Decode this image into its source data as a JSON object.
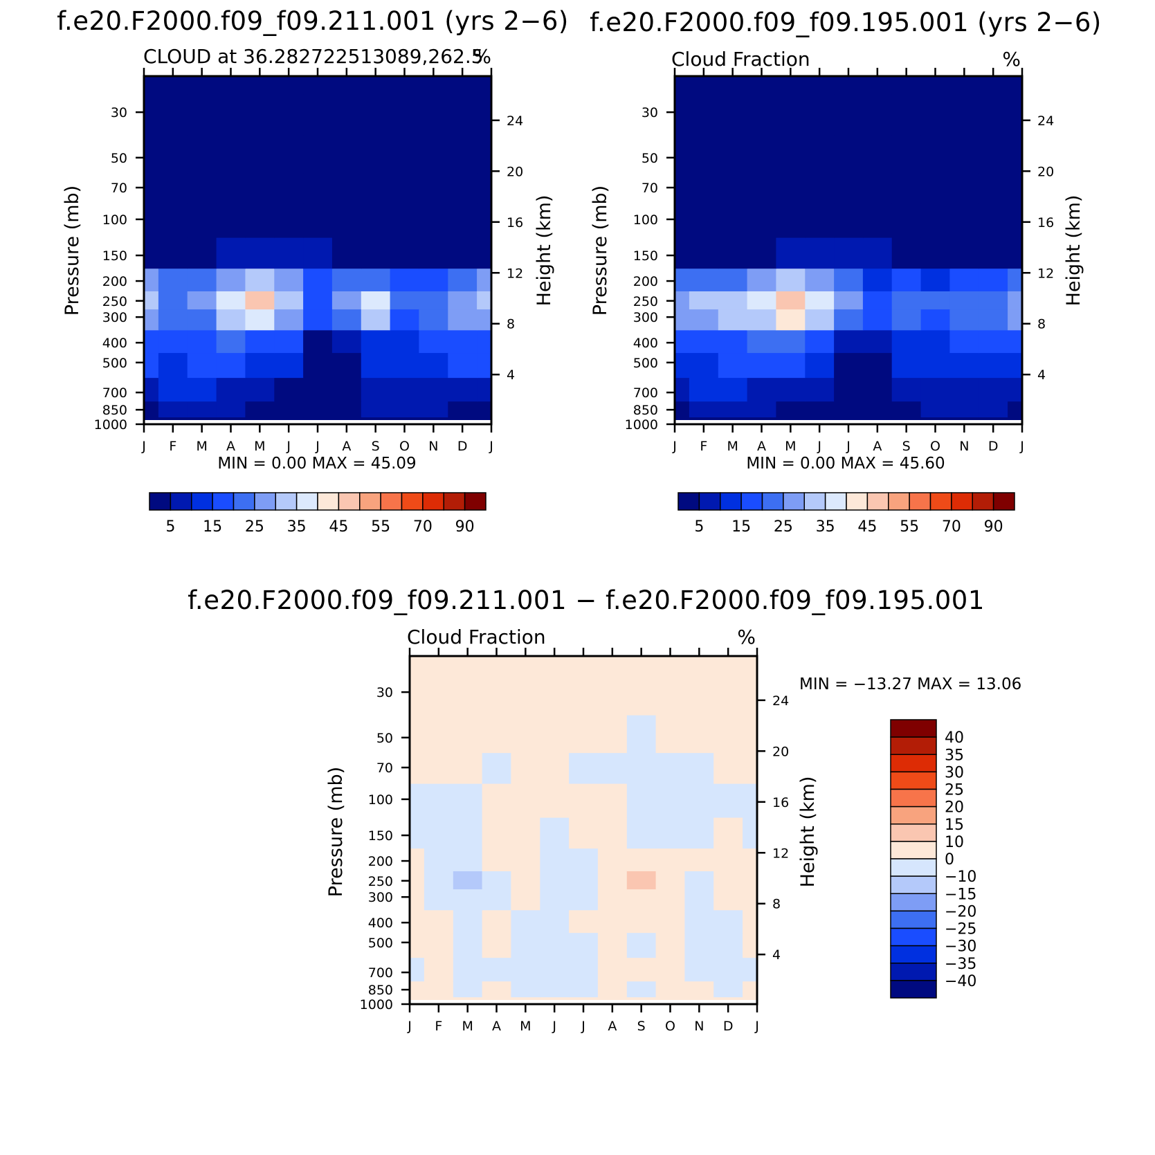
{
  "page": {
    "background": "#ffffff"
  },
  "colors": {
    "seq": [
      "#000a80",
      "#0019b0",
      "#0030e0",
      "#1a4dff",
      "#3d6ff2",
      "#7e9df5",
      "#b4c9fa",
      "#dce9fd",
      "#fde8d8",
      "#fac6b1",
      "#f8a37e",
      "#f7744a",
      "#ef4b18",
      "#dd2c05",
      "#b31d06",
      "#7f0000"
    ],
    "div": [
      "#000a80",
      "#0019b0",
      "#0030e0",
      "#1a4dff",
      "#3d6ff2",
      "#7e9df5",
      "#b4c9fa",
      "#d6e6fd",
      "#fde8d8",
      "#fac6b1",
      "#f8a37e",
      "#f7744a",
      "#ef4b18",
      "#dd2c05",
      "#b31d06",
      "#7f0000"
    ]
  },
  "panels": [
    {
      "id": "p1",
      "title": "f.e20.F2000.f09_f09.211.001 (yrs 2−6)",
      "left_label": "CLOUD at 36.282722513089,262.5",
      "right_label": "%",
      "minmax": "MIN =    0.00  MAX =   45.09",
      "ylabel": "Pressure (mb)",
      "ylabel_right": "Height (km)"
    },
    {
      "id": "p2",
      "title": "f.e20.F2000.f09_f09.195.001 (yrs 2−6)",
      "left_label": "Cloud Fraction",
      "right_label": "%",
      "minmax": "MIN =    0.00  MAX =   45.60",
      "ylabel": "Pressure (mb)",
      "ylabel_right": "Height (km)"
    },
    {
      "id": "p3",
      "title": "f.e20.F2000.f09_f09.211.001 − f.e20.F2000.f09_f09.195.001",
      "left_label": "Cloud Fraction",
      "right_label": "%",
      "minmax": "MIN = −13.27  MAX =   13.06",
      "ylabel": "Pressure (mb)",
      "ylabel_right": "Height (km)"
    }
  ],
  "colorbars": {
    "seq_labels": [
      "5",
      "15",
      "25",
      "35",
      "45",
      "55",
      "70",
      "90"
    ],
    "div_labels": [
      "40",
      "35",
      "30",
      "25",
      "20",
      "15",
      "10",
      "0",
      "−10",
      "−15",
      "−20",
      "−25",
      "−30",
      "−35",
      "−40"
    ]
  },
  "chart_data": [
    {
      "type": "heatmap",
      "title": "f.e20.F2000.f09_f09.211.001 (yrs 2−6)",
      "subtitle": "CLOUD at 36.282722513089,262.5",
      "units": "%",
      "xlabel": "",
      "ylabel": "Pressure (mb)",
      "ylabel_right": "Height (km)",
      "x_ticks": [
        "J",
        "F",
        "M",
        "A",
        "M",
        "J",
        "J",
        "A",
        "S",
        "O",
        "N",
        "D",
        "J"
      ],
      "y_ticks": [
        30,
        50,
        70,
        100,
        150,
        200,
        250,
        300,
        400,
        500,
        700,
        850,
        1000
      ],
      "y_scale": "log",
      "ylim": [
        1000,
        20
      ],
      "y_right_ticks": [
        4,
        8,
        12,
        16,
        20,
        24
      ],
      "contour_levels": [
        5,
        10,
        15,
        20,
        25,
        30,
        35,
        40,
        45,
        50,
        55,
        60,
        70,
        80,
        90
      ],
      "min": 0.0,
      "max": 45.09,
      "months": [
        "J",
        "F",
        "M",
        "A",
        "M",
        "J",
        "J",
        "A",
        "S",
        "O",
        "N",
        "D",
        "J"
      ],
      "levels_mb": [
        1000,
        850,
        700,
        500,
        400,
        300,
        250,
        200,
        150,
        100,
        70,
        50,
        30,
        20
      ],
      "values": [
        [
          0,
          0,
          0,
          0,
          0,
          0,
          0,
          0,
          0,
          0,
          0,
          0,
          0
        ],
        [
          4,
          8,
          9,
          8,
          4,
          2,
          1,
          3,
          6,
          5,
          8,
          4,
          4
        ],
        [
          9,
          11,
          11,
          9,
          7,
          4,
          1,
          3,
          9,
          7,
          8,
          9,
          9
        ],
        [
          15,
          14,
          15,
          16,
          14,
          11,
          2,
          4,
          11,
          11,
          13,
          15,
          15
        ],
        [
          17,
          16,
          18,
          20,
          19,
          15,
          3,
          8,
          14,
          14,
          15,
          17,
          17
        ],
        [
          28,
          22,
          24,
          34,
          38,
          28,
          17,
          24,
          33,
          19,
          24,
          27,
          28
        ],
        [
          33,
          24,
          26,
          38,
          45,
          32,
          19,
          26,
          37,
          22,
          24,
          28,
          33
        ],
        [
          26,
          20,
          22,
          27,
          31,
          25,
          17,
          20,
          24,
          16,
          19,
          21,
          26
        ],
        [
          2,
          3,
          3,
          5,
          6,
          5,
          6,
          4,
          3,
          2,
          3,
          2,
          2
        ],
        [
          0,
          0,
          0,
          0,
          0,
          0,
          0,
          0,
          0,
          0,
          0,
          0,
          0
        ],
        [
          0,
          0,
          0,
          0,
          0,
          0,
          0,
          0,
          0,
          0,
          0,
          0,
          0
        ],
        [
          0,
          0,
          0,
          0,
          0,
          0,
          0,
          0,
          0,
          0,
          0,
          0,
          0
        ],
        [
          0,
          0,
          0,
          0,
          0,
          0,
          0,
          0,
          0,
          0,
          0,
          0,
          0
        ],
        [
          0,
          0,
          0,
          0,
          0,
          0,
          0,
          0,
          0,
          0,
          0,
          0,
          0
        ]
      ]
    },
    {
      "type": "heatmap",
      "title": "f.e20.F2000.f09_f09.195.001 (yrs 2−6)",
      "subtitle": "Cloud Fraction",
      "units": "%",
      "xlabel": "",
      "ylabel": "Pressure (mb)",
      "ylabel_right": "Height (km)",
      "x_ticks": [
        "J",
        "F",
        "M",
        "A",
        "M",
        "J",
        "J",
        "A",
        "S",
        "O",
        "N",
        "D",
        "J"
      ],
      "y_ticks": [
        30,
        50,
        70,
        100,
        150,
        200,
        250,
        300,
        400,
        500,
        700,
        850,
        1000
      ],
      "y_scale": "log",
      "ylim": [
        1000,
        20
      ],
      "y_right_ticks": [
        4,
        8,
        12,
        16,
        20,
        24
      ],
      "contour_levels": [
        5,
        10,
        15,
        20,
        25,
        30,
        35,
        40,
        45,
        50,
        55,
        60,
        70,
        80,
        90
      ],
      "min": 0.0,
      "max": 45.6,
      "months": [
        "J",
        "F",
        "M",
        "A",
        "M",
        "J",
        "J",
        "A",
        "S",
        "O",
        "N",
        "D",
        "J"
      ],
      "levels_mb": [
        1000,
        850,
        700,
        500,
        400,
        300,
        250,
        200,
        150,
        100,
        70,
        50,
        30,
        20
      ],
      "values": [
        [
          0,
          0,
          0,
          0,
          0,
          0,
          0,
          0,
          0,
          0,
          0,
          0,
          0
        ],
        [
          4,
          9,
          8,
          5,
          4,
          3,
          1,
          1,
          3,
          6,
          8,
          5,
          4
        ],
        [
          9,
          11,
          11,
          9,
          8,
          6,
          2,
          3,
          7,
          7,
          8,
          9,
          9
        ],
        [
          14,
          14,
          15,
          16,
          16,
          13,
          3,
          3,
          11,
          11,
          13,
          14,
          14
        ],
        [
          16,
          16,
          18,
          20,
          20,
          17,
          6,
          7,
          14,
          14,
          15,
          16,
          16
        ],
        [
          27,
          26,
          31,
          33,
          40,
          33,
          24,
          16,
          21,
          19,
          22,
          24,
          27
        ],
        [
          28,
          30,
          33,
          36,
          45,
          35,
          27,
          19,
          24,
          21,
          22,
          24,
          28
        ],
        [
          22,
          22,
          24,
          27,
          31,
          28,
          21,
          14,
          17,
          14,
          17,
          19,
          22
        ],
        [
          2,
          3,
          3,
          4,
          6,
          6,
          7,
          5,
          2,
          2,
          2,
          2,
          2
        ],
        [
          0,
          0,
          0,
          0,
          0,
          0,
          0,
          0,
          0,
          0,
          0,
          0,
          0
        ],
        [
          0,
          0,
          0,
          0,
          0,
          0,
          0,
          0,
          0,
          0,
          0,
          0,
          0
        ],
        [
          0,
          0,
          0,
          0,
          0,
          0,
          0,
          0,
          0,
          0,
          0,
          0,
          0
        ],
        [
          0,
          0,
          0,
          0,
          0,
          0,
          0,
          0,
          0,
          0,
          0,
          0,
          0
        ],
        [
          0,
          0,
          0,
          0,
          0,
          0,
          0,
          0,
          0,
          0,
          0,
          0,
          0
        ]
      ]
    },
    {
      "type": "heatmap",
      "title": "f.e20.F2000.f09_f09.211.001 − f.e20.F2000.f09_f09.195.001",
      "subtitle": "Cloud Fraction",
      "units": "%",
      "xlabel": "",
      "ylabel": "Pressure (mb)",
      "ylabel_right": "Height (km)",
      "x_ticks": [
        "J",
        "F",
        "M",
        "A",
        "M",
        "J",
        "J",
        "A",
        "S",
        "O",
        "N",
        "D",
        "J"
      ],
      "y_ticks": [
        30,
        50,
        70,
        100,
        150,
        200,
        250,
        300,
        400,
        500,
        700,
        850,
        1000
      ],
      "y_scale": "log",
      "ylim": [
        1000,
        20
      ],
      "y_right_ticks": [
        4,
        8,
        12,
        16,
        20,
        24
      ],
      "contour_levels": [
        -40,
        -35,
        -30,
        -25,
        -20,
        -15,
        -10,
        0,
        10,
        15,
        20,
        25,
        30,
        35,
        40
      ],
      "min": -13.27,
      "max": 13.06,
      "months": [
        "J",
        "F",
        "M",
        "A",
        "M",
        "J",
        "J",
        "A",
        "S",
        "O",
        "N",
        "D",
        "J"
      ],
      "levels_mb": [
        1000,
        850,
        700,
        500,
        400,
        300,
        250,
        200,
        150,
        100,
        70,
        50,
        30,
        20
      ],
      "values": [
        [
          0,
          0,
          0,
          0,
          0,
          0,
          0,
          0,
          0,
          0,
          0,
          0,
          0
        ],
        [
          1,
          1,
          -1,
          1,
          -1,
          -1,
          -1,
          1,
          -1,
          1,
          1,
          -1,
          1
        ],
        [
          -1,
          1,
          -1,
          -1,
          -1,
          -1,
          -1,
          1,
          1,
          1,
          -1,
          -1,
          -1
        ],
        [
          1,
          1,
          -1,
          1,
          -1,
          -1,
          -1,
          1,
          -1,
          1,
          -1,
          -1,
          1
        ],
        [
          1,
          1,
          -1,
          1,
          -1,
          -1,
          1,
          1,
          1,
          1,
          -1,
          -1,
          1
        ],
        [
          1,
          -1,
          -4,
          -1,
          1,
          -1,
          -1,
          1,
          4,
          1,
          -1,
          1,
          1
        ],
        [
          1,
          -1,
          -11,
          -1,
          1,
          -1,
          -1,
          1,
          13,
          1,
          -1,
          1,
          1
        ],
        [
          1,
          -1,
          -4,
          1,
          1,
          -1,
          -1,
          1,
          4,
          1,
          1,
          1,
          1
        ],
        [
          -1,
          -1,
          -1,
          1,
          1,
          -1,
          1,
          1,
          -1,
          -1,
          -1,
          1,
          -1
        ],
        [
          -1,
          -1,
          -1,
          1,
          1,
          1,
          1,
          1,
          -1,
          -1,
          -1,
          -1,
          -1
        ],
        [
          1,
          1,
          1,
          -1,
          1,
          1,
          -1,
          -1,
          -1,
          -1,
          -1,
          1,
          1
        ],
        [
          1,
          1,
          1,
          1,
          1,
          1,
          1,
          1,
          -1,
          1,
          1,
          1,
          1
        ],
        [
          1,
          1,
          1,
          1,
          1,
          1,
          1,
          1,
          1,
          1,
          1,
          1,
          1
        ],
        [
          1,
          1,
          1,
          1,
          1,
          1,
          1,
          1,
          1,
          1,
          1,
          1,
          1
        ]
      ]
    }
  ]
}
